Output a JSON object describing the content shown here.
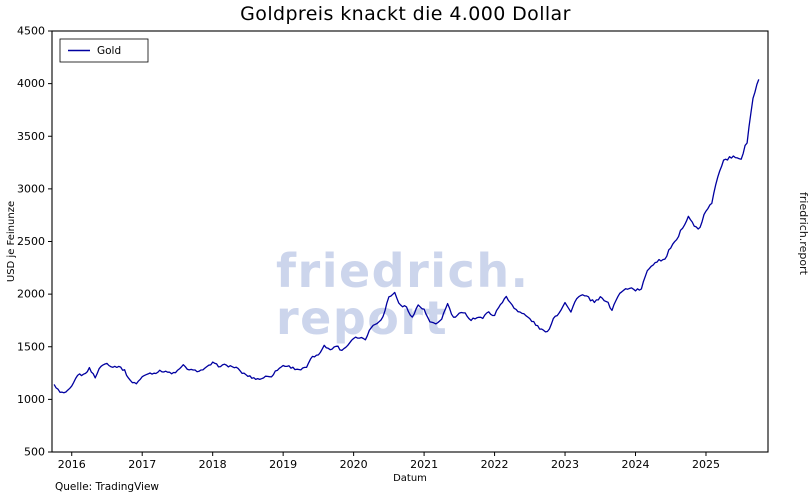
{
  "title": "Goldpreis knackt die 4.000 Dollar",
  "watermark": {
    "line1": "friedrich.",
    "line2": "report"
  },
  "side_label": "friedrich.report",
  "source": "Quelle: TradingView",
  "chart_data": {
    "type": "line",
    "title": "Goldpreis knackt die 4.000 Dollar",
    "xlabel": "Datum",
    "ylabel": "USD je Feinunze",
    "legend": [
      "Gold"
    ],
    "legend_position": "upper left",
    "grid": false,
    "line_color": "#0000a0",
    "axis_color": "#000000",
    "ylim": [
      500,
      4500
    ],
    "xlim": [
      2015.72,
      2025.88
    ],
    "yticks": [
      500,
      1000,
      1500,
      2000,
      2500,
      3000,
      3500,
      4000,
      4500
    ],
    "xticks": [
      2016,
      2017,
      2018,
      2019,
      2020,
      2021,
      2022,
      2023,
      2024,
      2025
    ],
    "series": [
      {
        "name": "Gold",
        "points": [
          [
            2015.75,
            1142
          ],
          [
            2015.833,
            1065
          ],
          [
            2015.917,
            1061
          ],
          [
            2016.0,
            1118
          ],
          [
            2016.083,
            1234
          ],
          [
            2016.167,
            1233
          ],
          [
            2016.25,
            1293
          ],
          [
            2016.333,
            1212
          ],
          [
            2016.417,
            1320
          ],
          [
            2016.5,
            1342
          ],
          [
            2016.583,
            1309
          ],
          [
            2016.667,
            1316
          ],
          [
            2016.75,
            1272
          ],
          [
            2016.833,
            1173
          ],
          [
            2016.917,
            1152
          ],
          [
            2017.0,
            1211
          ],
          [
            2017.083,
            1248
          ],
          [
            2017.167,
            1249
          ],
          [
            2017.25,
            1268
          ],
          [
            2017.333,
            1269
          ],
          [
            2017.417,
            1242
          ],
          [
            2017.5,
            1269
          ],
          [
            2017.583,
            1321
          ],
          [
            2017.667,
            1280
          ],
          [
            2017.75,
            1271
          ],
          [
            2017.833,
            1275
          ],
          [
            2017.917,
            1303
          ],
          [
            2018.0,
            1345
          ],
          [
            2018.083,
            1318
          ],
          [
            2018.167,
            1325
          ],
          [
            2018.25,
            1315
          ],
          [
            2018.333,
            1301
          ],
          [
            2018.417,
            1253
          ],
          [
            2018.5,
            1224
          ],
          [
            2018.583,
            1201
          ],
          [
            2018.667,
            1192
          ],
          [
            2018.75,
            1215
          ],
          [
            2018.833,
            1222
          ],
          [
            2018.917,
            1282
          ],
          [
            2019.0,
            1321
          ],
          [
            2019.083,
            1313
          ],
          [
            2019.167,
            1292
          ],
          [
            2019.25,
            1283
          ],
          [
            2019.333,
            1305
          ],
          [
            2019.417,
            1409
          ],
          [
            2019.5,
            1414
          ],
          [
            2019.583,
            1520
          ],
          [
            2019.667,
            1466
          ],
          [
            2019.75,
            1513
          ],
          [
            2019.833,
            1464
          ],
          [
            2019.917,
            1517
          ],
          [
            2020.0,
            1589
          ],
          [
            2020.083,
            1586
          ],
          [
            2020.167,
            1577
          ],
          [
            2020.25,
            1686
          ],
          [
            2020.333,
            1730
          ],
          [
            2020.417,
            1781
          ],
          [
            2020.5,
            1976
          ],
          [
            2020.583,
            2010
          ],
          [
            2020.667,
            1886
          ],
          [
            2020.75,
            1879
          ],
          [
            2020.833,
            1777
          ],
          [
            2020.917,
            1898
          ],
          [
            2021.0,
            1848
          ],
          [
            2021.083,
            1734
          ],
          [
            2021.167,
            1708
          ],
          [
            2021.25,
            1769
          ],
          [
            2021.333,
            1907
          ],
          [
            2021.417,
            1770
          ],
          [
            2021.5,
            1814
          ],
          [
            2021.583,
            1814
          ],
          [
            2021.667,
            1757
          ],
          [
            2021.75,
            1783
          ],
          [
            2021.833,
            1775
          ],
          [
            2021.917,
            1829
          ],
          [
            2022.0,
            1797
          ],
          [
            2022.083,
            1909
          ],
          [
            2022.167,
            1970
          ],
          [
            2022.25,
            1897
          ],
          [
            2022.333,
            1837
          ],
          [
            2022.417,
            1807
          ],
          [
            2022.5,
            1766
          ],
          [
            2022.583,
            1711
          ],
          [
            2022.667,
            1661
          ],
          [
            2022.75,
            1634
          ],
          [
            2022.833,
            1769
          ],
          [
            2022.917,
            1824
          ],
          [
            2023.0,
            1928
          ],
          [
            2023.083,
            1827
          ],
          [
            2023.167,
            1969
          ],
          [
            2023.25,
            1990
          ],
          [
            2023.333,
            1963
          ],
          [
            2023.417,
            1919
          ],
          [
            2023.5,
            1965
          ],
          [
            2023.583,
            1940
          ],
          [
            2023.667,
            1849
          ],
          [
            2023.75,
            1984
          ],
          [
            2023.833,
            2036
          ],
          [
            2023.917,
            2063
          ],
          [
            2024.0,
            2040
          ],
          [
            2024.083,
            2044
          ],
          [
            2024.167,
            2230
          ],
          [
            2024.25,
            2286
          ],
          [
            2024.333,
            2327
          ],
          [
            2024.417,
            2327
          ],
          [
            2024.5,
            2448
          ],
          [
            2024.583,
            2503
          ],
          [
            2024.667,
            2635
          ],
          [
            2024.75,
            2744
          ],
          [
            2024.833,
            2643
          ],
          [
            2024.917,
            2625
          ],
          [
            2025.0,
            2798
          ],
          [
            2025.083,
            2858
          ],
          [
            2025.167,
            3124
          ],
          [
            2025.25,
            3289
          ],
          [
            2025.333,
            3289
          ],
          [
            2025.417,
            3303
          ],
          [
            2025.5,
            3290
          ],
          [
            2025.583,
            3448
          ],
          [
            2025.667,
            3858
          ],
          [
            2025.75,
            4040
          ]
        ]
      }
    ]
  }
}
